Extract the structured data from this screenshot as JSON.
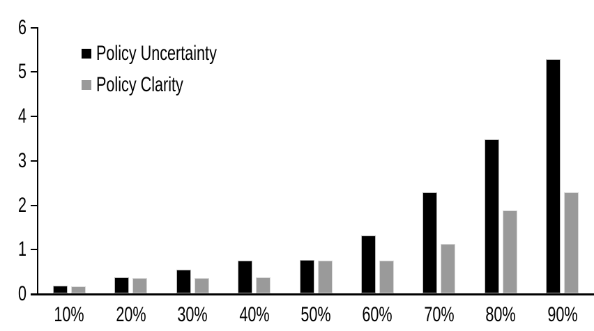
{
  "chart_data": {
    "type": "bar",
    "title": "",
    "xlabel": "",
    "ylabel": "",
    "categories": [
      "10%",
      "20%",
      "30%",
      "40%",
      "50%",
      "60%",
      "70%",
      "80%",
      "90%"
    ],
    "series": [
      {
        "name": "Policy Uncertainty",
        "color": "#000000",
        "values": [
          0.2,
          0.39,
          0.57,
          0.77,
          0.78,
          1.33,
          2.3,
          3.5,
          5.3
        ]
      },
      {
        "name": "Policy Clarity",
        "color": "#999999",
        "values": [
          0.19,
          0.38,
          0.38,
          0.39,
          0.77,
          0.77,
          1.14,
          1.9,
          2.3
        ]
      }
    ],
    "ylim": [
      0,
      6
    ],
    "yticks": [
      0,
      1,
      2,
      3,
      4,
      5,
      6
    ],
    "grid": false,
    "legend_position": "top-left",
    "background": "#ffffff"
  }
}
